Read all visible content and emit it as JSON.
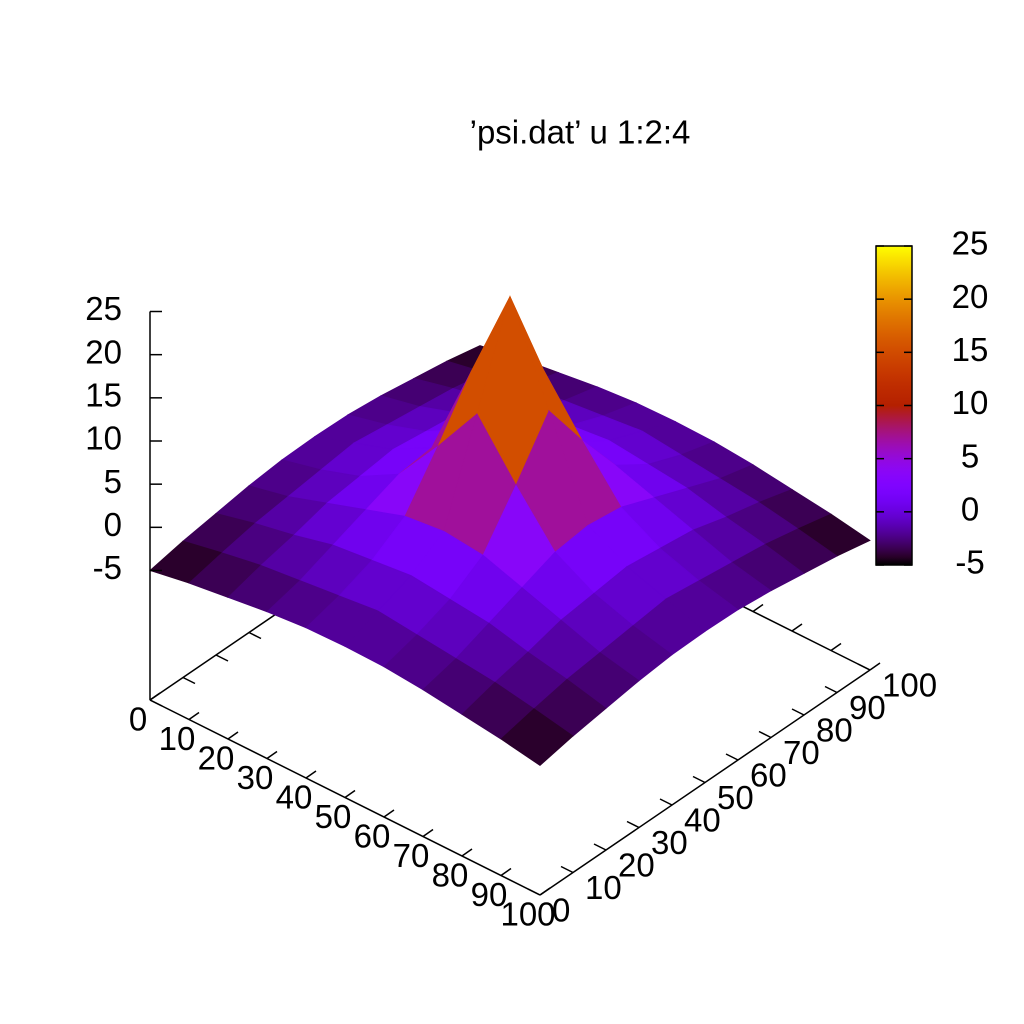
{
  "chart_data": {
    "type": "surface",
    "title": "’psi.dat’ u 1:2:4",
    "x": [
      0,
      10,
      20,
      30,
      40,
      50,
      60,
      70,
      80,
      90,
      100
    ],
    "y": [
      0,
      10,
      20,
      30,
      40,
      50,
      60,
      70,
      80,
      90,
      100
    ],
    "z": [
      [
        -5,
        -4.2,
        -3.6,
        -3,
        -2.6,
        -2.5,
        -2.6,
        -3,
        -3.6,
        -4.2,
        -5
      ],
      [
        -4.2,
        -3.3,
        -2.5,
        -2,
        -1.5,
        -1,
        -1.5,
        -2,
        -2.5,
        -3.3,
        -4.2
      ],
      [
        -3.6,
        -2.5,
        -1.6,
        -0.5,
        0,
        0.5,
        0,
        -0.5,
        -1.6,
        -2.5,
        -3.6
      ],
      [
        -3,
        -2,
        -0.5,
        1,
        2.5,
        3,
        2.5,
        1,
        -0.5,
        -2,
        -3
      ],
      [
        -2.6,
        -1.5,
        0,
        2.5,
        8,
        14,
        8,
        2.5,
        0,
        -1.5,
        -2.6
      ],
      [
        -2.5,
        -1,
        0.5,
        3,
        14,
        25,
        14,
        3,
        0.5,
        -1,
        -2.5
      ],
      [
        -2.6,
        -1.5,
        0,
        2.5,
        8,
        14,
        8,
        2.5,
        0,
        -1.5,
        -2.6
      ],
      [
        -3,
        -2,
        -0.5,
        1,
        2.5,
        3,
        2.5,
        1,
        -0.5,
        -2,
        -3
      ],
      [
        -3.6,
        -2.5,
        -1.6,
        -0.5,
        0,
        0.5,
        0,
        -0.5,
        -1.6,
        -2.5,
        -3.6
      ],
      [
        -4.2,
        -3.3,
        -2.5,
        -2,
        -1.5,
        -1,
        -1.5,
        -2,
        -2.5,
        -3.3,
        -4.2
      ],
      [
        -5,
        -4.2,
        -3.6,
        -3,
        -2.6,
        -2.5,
        -2.6,
        -3,
        -3.6,
        -4.2,
        -5
      ]
    ],
    "xlim": [
      0,
      100
    ],
    "ylim": [
      0,
      100
    ],
    "zlim": [
      -5,
      25
    ],
    "xticks": [
      0,
      10,
      20,
      30,
      40,
      50,
      60,
      70,
      80,
      90,
      100
    ],
    "yticks": [
      0,
      10,
      20,
      30,
      40,
      50,
      60,
      70,
      80,
      90,
      100
    ],
    "zticks": [
      -5,
      0,
      5,
      10,
      15,
      20,
      25
    ],
    "cblim": [
      -5,
      25
    ],
    "cbticks": [
      -5,
      0,
      5,
      10,
      15,
      20,
      25
    ]
  }
}
